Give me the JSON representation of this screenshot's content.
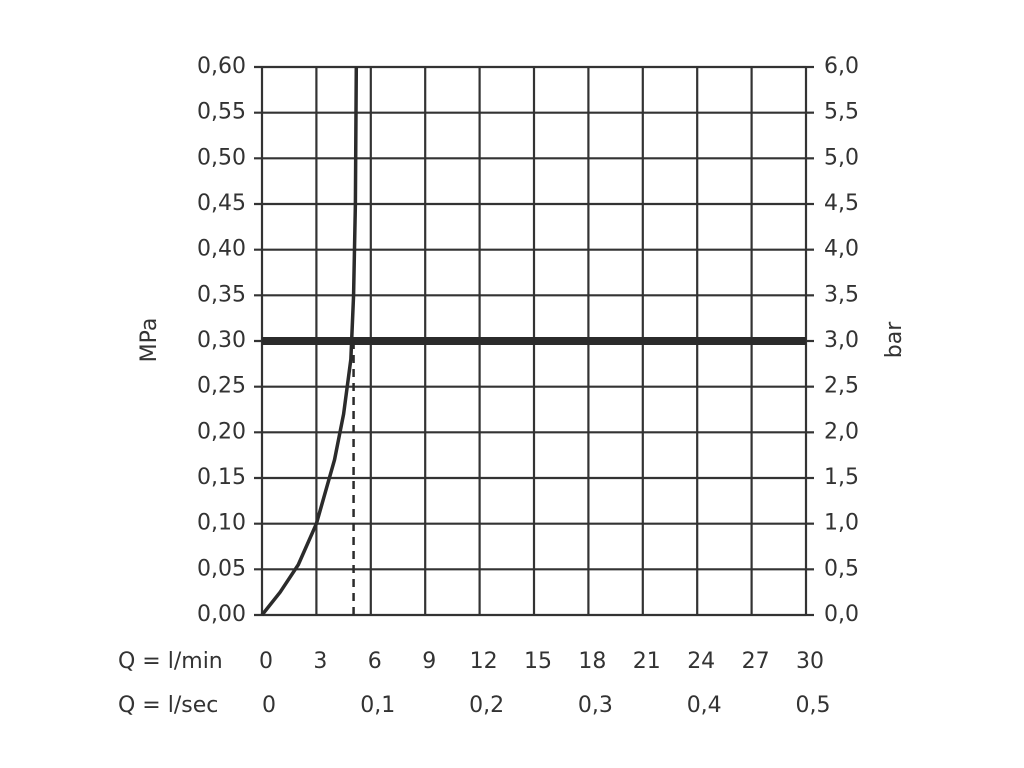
{
  "chart_data": {
    "type": "line",
    "xlabel": "Q = l/min",
    "x2label": "Q = l/sec",
    "ylabel": "MPa",
    "y2label": "bar",
    "x": [
      0,
      1,
      2,
      3,
      4,
      4.5,
      4.9,
      5.05,
      5.15,
      5.2
    ],
    "values": [
      0,
      0.025,
      0.055,
      0.1,
      0.17,
      0.22,
      0.28,
      0.35,
      0.45,
      0.6
    ],
    "color": "#2b2b2b",
    "xlim": [
      0,
      30
    ],
    "xticks": [
      0,
      3,
      6,
      9,
      12,
      15,
      18,
      21,
      24,
      27,
      30
    ],
    "x2lim": [
      0,
      0.5
    ],
    "x2ticks": [
      0,
      {
        "value": 0.1,
        "label": "0,1"
      },
      {
        "value": 0.2,
        "label": "0,2"
      },
      {
        "value": 0.3,
        "label": "0,3"
      },
      {
        "value": 0.4,
        "label": "0,4"
      },
      {
        "value": 0.5,
        "label": "0,5"
      }
    ],
    "ylim": [
      0,
      0.6
    ],
    "yticks": [
      {
        "value": 0,
        "label": "0,00"
      },
      {
        "value": 0.05,
        "label": "0,05"
      },
      {
        "value": 0.1,
        "label": "0,10"
      },
      {
        "value": 0.15,
        "label": "0,15"
      },
      {
        "value": 0.2,
        "label": "0,20"
      },
      {
        "value": 0.25,
        "label": "0,25"
      },
      {
        "value": 0.3,
        "label": "0,30"
      },
      {
        "value": 0.35,
        "label": "0,35"
      },
      {
        "value": 0.4,
        "label": "0,40"
      },
      {
        "value": 0.45,
        "label": "0,45"
      },
      {
        "value": 0.5,
        "label": "0,50"
      },
      {
        "value": 0.55,
        "label": "0,55"
      },
      {
        "value": 0.6,
        "label": "0,60"
      }
    ],
    "y2lim": [
      0,
      6
    ],
    "y2ticks": [
      {
        "value": 0,
        "label": "0,0"
      },
      {
        "value": 0.5,
        "label": "0,5"
      },
      {
        "value": 1,
        "label": "1,0"
      },
      {
        "value": 1.5,
        "label": "1,5"
      },
      {
        "value": 2,
        "label": "2,0"
      },
      {
        "value": 2.5,
        "label": "2,5"
      },
      {
        "value": 3,
        "label": "3,0"
      },
      {
        "value": 3.5,
        "label": "3,5"
      },
      {
        "value": 4,
        "label": "4,0"
      },
      {
        "value": 4.5,
        "label": "4,5"
      },
      {
        "value": 5,
        "label": "5,0"
      },
      {
        "value": 5.5,
        "label": "5,5"
      },
      {
        "value": 6,
        "label": "6,0"
      }
    ],
    "grid": true,
    "hline": 0.3,
    "vline": 5.05
  }
}
